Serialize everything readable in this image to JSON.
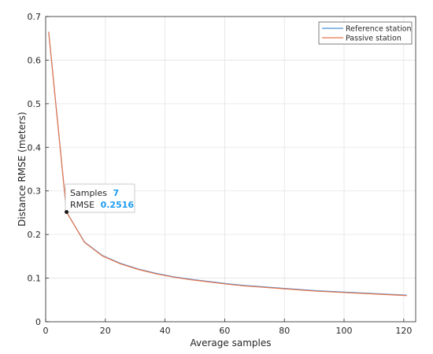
{
  "chart_data": {
    "type": "line",
    "xlabel": "Average samples",
    "ylabel": "Distance RMSE (meters)",
    "xlim": [
      0,
      124
    ],
    "ylim": [
      0,
      0.7
    ],
    "xticks": [
      "0",
      "20",
      "40",
      "60",
      "80",
      "100",
      "120"
    ],
    "yticks": [
      "0",
      "0.1",
      "0.2",
      "0.3",
      "0.4",
      "0.5",
      "0.6",
      "0.7"
    ],
    "grid": true,
    "legend_position": "top-right",
    "series": [
      {
        "name": "Reference station",
        "color": "#4a90d9",
        "x": [
          1,
          7,
          13,
          19,
          25,
          31,
          37,
          43,
          49,
          55,
          61,
          67,
          73,
          79,
          85,
          91,
          97,
          103,
          109,
          115,
          121
        ],
        "y": [
          0.665,
          0.2516,
          0.183,
          0.152,
          0.134,
          0.121,
          0.111,
          0.103,
          0.097,
          0.092,
          0.087,
          0.083,
          0.08,
          0.077,
          0.074,
          0.071,
          0.069,
          0.067,
          0.065,
          0.063,
          0.061
        ]
      },
      {
        "name": "Passive station",
        "color": "#e8744a",
        "x": [
          1,
          7,
          13,
          19,
          25,
          31,
          37,
          43,
          49,
          55,
          61,
          67,
          73,
          79,
          85,
          91,
          97,
          103,
          109,
          115,
          121
        ],
        "y": [
          0.665,
          0.2516,
          0.182,
          0.151,
          0.133,
          0.12,
          0.11,
          0.102,
          0.096,
          0.091,
          0.086,
          0.082,
          0.079,
          0.076,
          0.073,
          0.07,
          0.068,
          0.066,
          0.064,
          0.062,
          0.06
        ]
      }
    ],
    "datatip": {
      "x": 7,
      "y": 0.2516,
      "label_x": "Samples",
      "value_x": "7",
      "label_y": "RMSE",
      "value_y": "0.2516"
    }
  }
}
